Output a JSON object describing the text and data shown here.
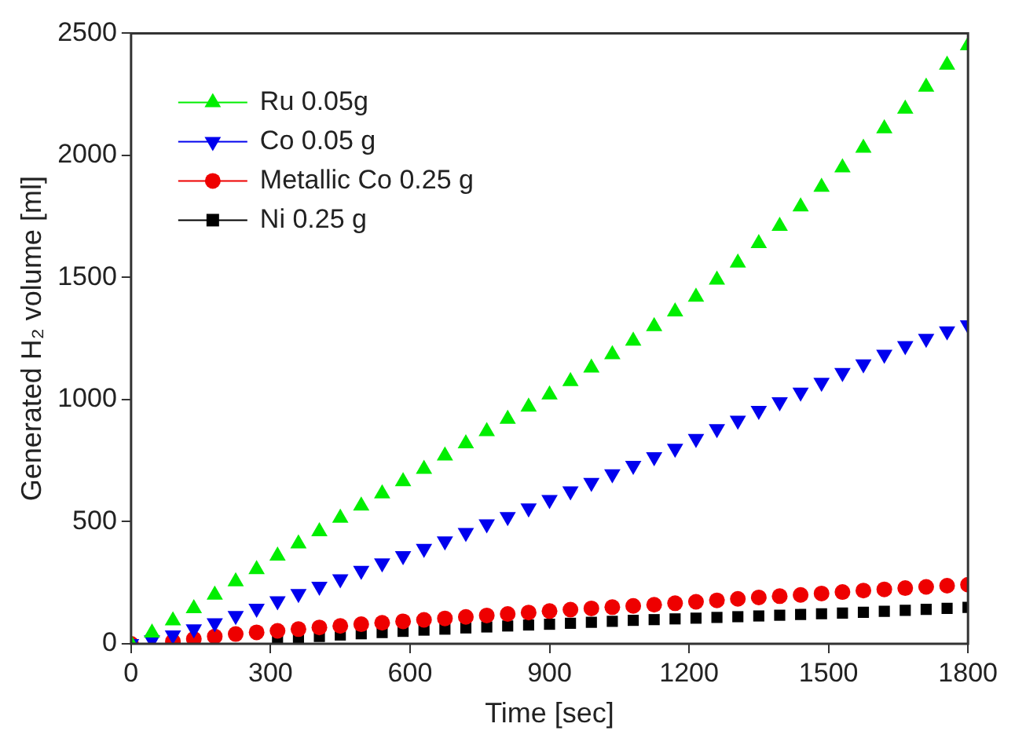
{
  "chart_data": {
    "type": "scatter",
    "xlabel": "Time [sec]",
    "ylabel": "Generated H₂ volume [ml]",
    "xlim": [
      0,
      1800
    ],
    "xticks": [
      0,
      300,
      600,
      900,
      1200,
      1500,
      1800
    ],
    "ylim": [
      0,
      2500
    ],
    "yticks": [
      0,
      500,
      1000,
      1500,
      2000,
      2500
    ],
    "grid": false,
    "legend": "top left",
    "x": [
      0,
      45,
      90,
      135,
      180,
      225,
      270,
      315,
      360,
      405,
      450,
      495,
      540,
      585,
      630,
      675,
      720,
      765,
      810,
      855,
      900,
      945,
      990,
      1035,
      1080,
      1125,
      1170,
      1215,
      1260,
      1305,
      1350,
      1395,
      1440,
      1485,
      1530,
      1575,
      1620,
      1665,
      1710,
      1755,
      1800
    ],
    "series": [
      {
        "name": "Ru 0.05g",
        "color": "#00ee00",
        "marker": "triangle",
        "values": [
          0,
          45,
          95,
          145,
          200,
          255,
          305,
          360,
          410,
          460,
          515,
          565,
          615,
          665,
          715,
          770,
          820,
          870,
          920,
          970,
          1020,
          1075,
          1130,
          1185,
          1240,
          1300,
          1360,
          1420,
          1490,
          1560,
          1640,
          1710,
          1790,
          1870,
          1950,
          2030,
          2110,
          2190,
          2280,
          2370,
          2450
        ]
      },
      {
        "name": "Co 0.05 g",
        "color": "#0000ee",
        "marker": "triangle-down",
        "values": [
          0,
          15,
          35,
          60,
          85,
          115,
          145,
          175,
          205,
          235,
          265,
          300,
          330,
          360,
          390,
          420,
          455,
          490,
          520,
          555,
          590,
          625,
          660,
          695,
          730,
          765,
          800,
          840,
          880,
          915,
          955,
          990,
          1030,
          1070,
          1110,
          1145,
          1185,
          1220,
          1250,
          1280,
          1305
        ]
      },
      {
        "name": "Metallic Co 0.25 g",
        "color": "#ee0000",
        "marker": "circle",
        "values": [
          0,
          null,
          10,
          20,
          30,
          40,
          47,
          53,
          60,
          67,
          73,
          80,
          86,
          92,
          98,
          104,
          110,
          116,
          122,
          128,
          134,
          140,
          145,
          150,
          155,
          160,
          166,
          172,
          178,
          184,
          190,
          195,
          200,
          206,
          212,
          218,
          223,
          228,
          233,
          238,
          242
        ]
      },
      {
        "name": "Ni 0.25 g",
        "color": "#000000",
        "marker": "square",
        "values": [
          null,
          null,
          null,
          null,
          null,
          null,
          null,
          20,
          25,
          30,
          36,
          41,
          46,
          51,
          56,
          60,
          65,
          69,
          73,
          77,
          80,
          84,
          88,
          92,
          96,
          99,
          102,
          105,
          108,
          111,
          114,
          117,
          120,
          123,
          126,
          129,
          133,
          137,
          141,
          145,
          149
        ]
      }
    ]
  }
}
